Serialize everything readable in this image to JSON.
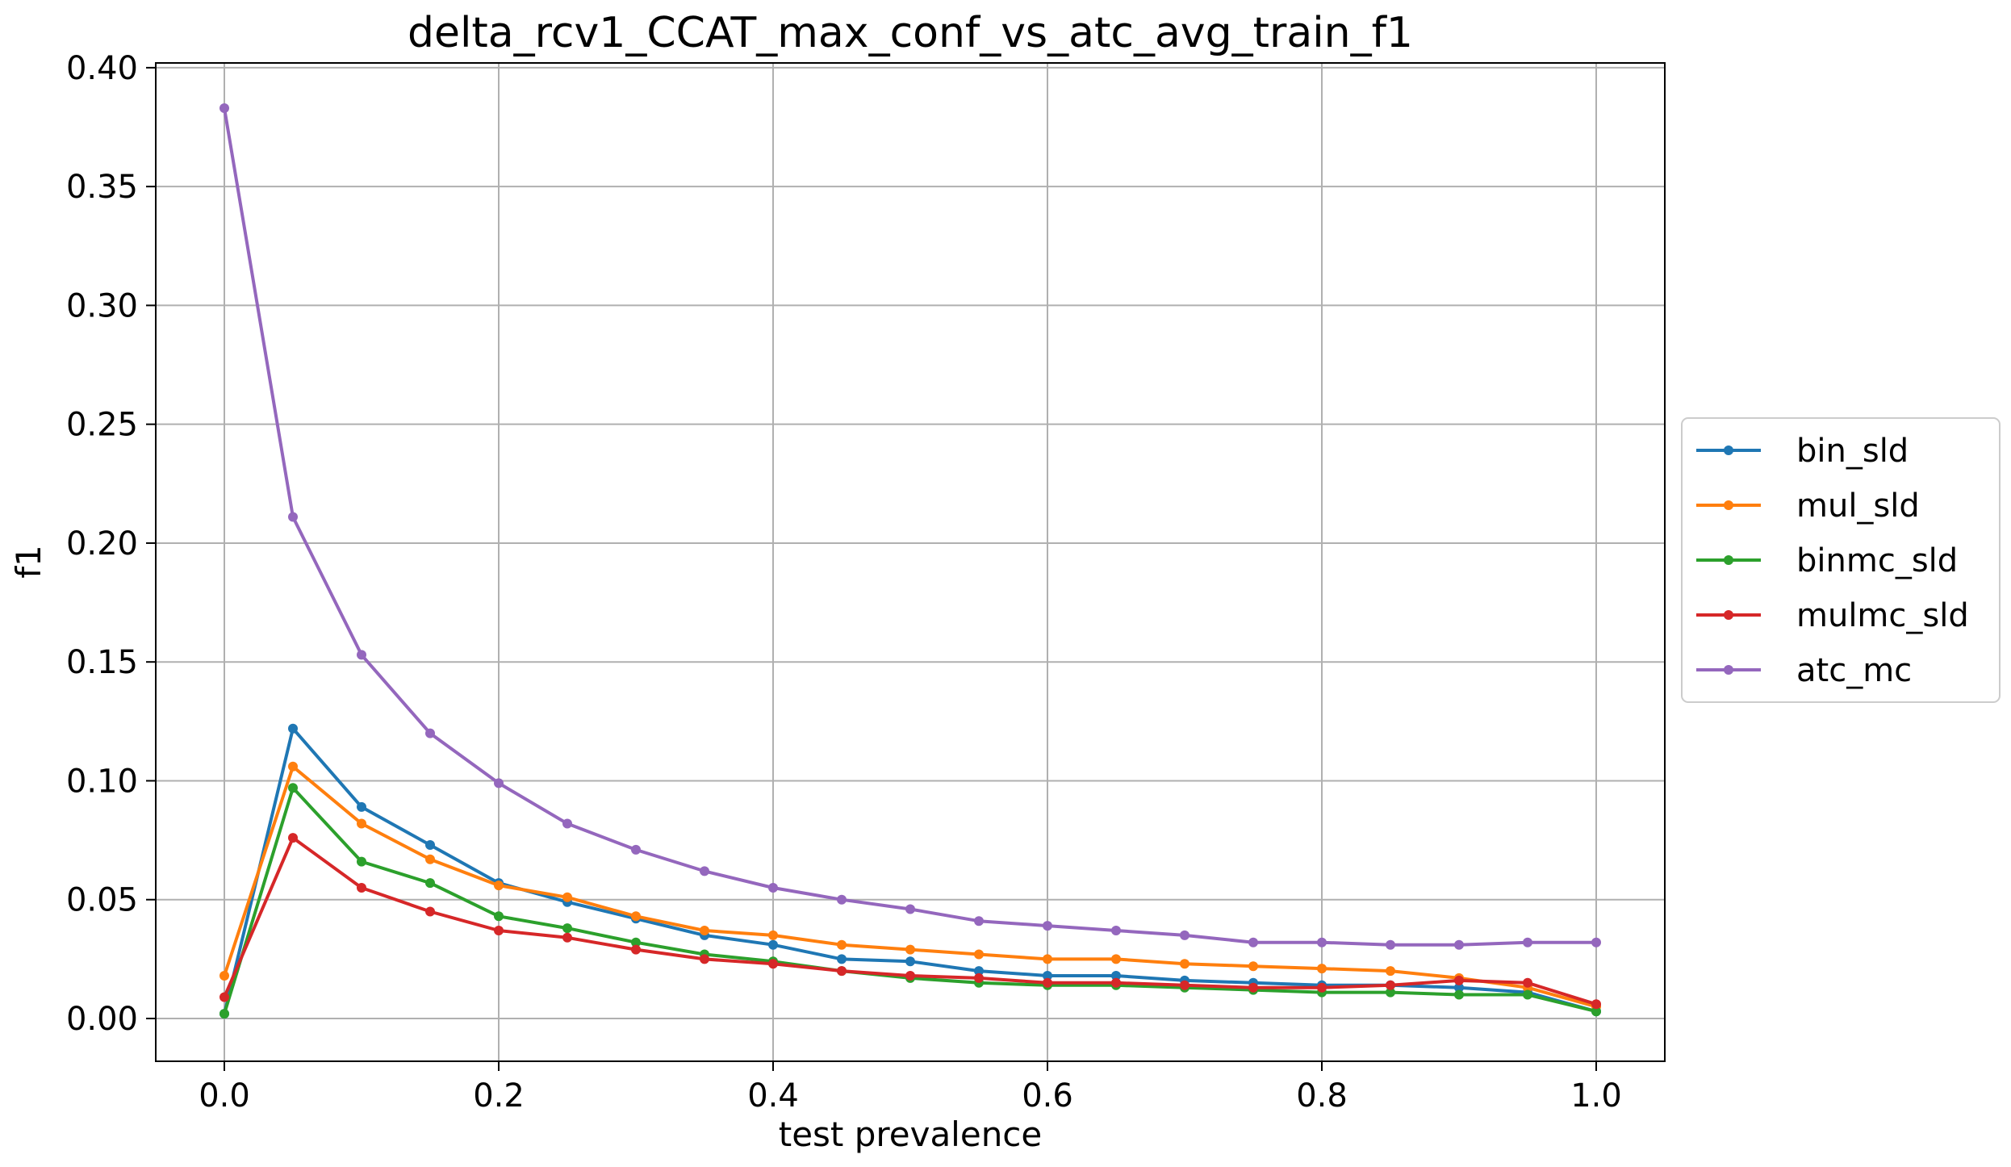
{
  "chart_data": {
    "type": "line",
    "title": "delta_rcv1_CCAT_max_conf_vs_atc_avg_train_f1",
    "xlabel": "test prevalence",
    "ylabel": "f1",
    "xlim": [
      -0.05,
      1.05
    ],
    "ylim": [
      -0.018,
      0.402
    ],
    "xticks": [
      0.0,
      0.2,
      0.4,
      0.6,
      0.8,
      1.0
    ],
    "xtick_labels": [
      "0.0",
      "0.2",
      "0.4",
      "0.6",
      "0.8",
      "1.0"
    ],
    "yticks": [
      0.0,
      0.05,
      0.1,
      0.15,
      0.2,
      0.25,
      0.3,
      0.35,
      0.4
    ],
    "ytick_labels": [
      "0.00",
      "0.05",
      "0.10",
      "0.15",
      "0.20",
      "0.25",
      "0.30",
      "0.35",
      "0.40"
    ],
    "grid": true,
    "legend_position": "outside-right",
    "x": [
      0.0,
      0.05,
      0.1,
      0.15,
      0.2,
      0.25,
      0.3,
      0.35,
      0.4,
      0.45,
      0.5,
      0.55,
      0.6,
      0.65,
      0.7,
      0.75,
      0.8,
      0.85,
      0.9,
      0.95,
      1.0
    ],
    "series": [
      {
        "name": "bin_sld",
        "color": "#1f77b4",
        "values": [
          0.002,
          0.122,
          0.089,
          0.073,
          0.057,
          0.049,
          0.042,
          0.035,
          0.031,
          0.025,
          0.024,
          0.02,
          0.018,
          0.018,
          0.016,
          0.015,
          0.014,
          0.014,
          0.013,
          0.011,
          0.003
        ]
      },
      {
        "name": "mul_sld",
        "color": "#ff7f0e",
        "values": [
          0.018,
          0.106,
          0.082,
          0.067,
          0.056,
          0.051,
          0.043,
          0.037,
          0.035,
          0.031,
          0.029,
          0.027,
          0.025,
          0.025,
          0.023,
          0.022,
          0.021,
          0.02,
          0.017,
          0.013,
          0.005
        ]
      },
      {
        "name": "binmc_sld",
        "color": "#2ca02c",
        "values": [
          0.002,
          0.097,
          0.066,
          0.057,
          0.043,
          0.038,
          0.032,
          0.027,
          0.024,
          0.02,
          0.017,
          0.015,
          0.014,
          0.014,
          0.013,
          0.012,
          0.011,
          0.011,
          0.01,
          0.01,
          0.003
        ]
      },
      {
        "name": "mulmc_sld",
        "color": "#d62728",
        "values": [
          0.009,
          0.076,
          0.055,
          0.045,
          0.037,
          0.034,
          0.029,
          0.025,
          0.023,
          0.02,
          0.018,
          0.017,
          0.015,
          0.015,
          0.014,
          0.013,
          0.013,
          0.014,
          0.016,
          0.015,
          0.006
        ]
      },
      {
        "name": "atc_mc",
        "color": "#9467bd",
        "values": [
          0.383,
          0.211,
          0.153,
          0.12,
          0.099,
          0.082,
          0.071,
          0.062,
          0.055,
          0.05,
          0.046,
          0.041,
          0.039,
          0.037,
          0.035,
          0.032,
          0.032,
          0.031,
          0.031,
          0.032,
          0.032
        ]
      }
    ]
  }
}
